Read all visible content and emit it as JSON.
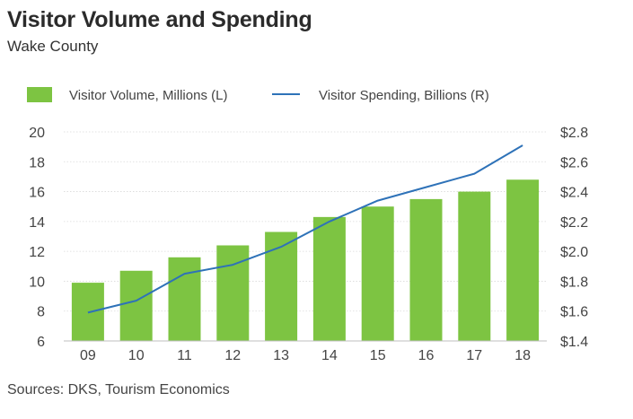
{
  "chart_data": {
    "type": "bar",
    "title": "Visitor Volume and Spending",
    "subtitle": "Wake County",
    "source": "Sources: DKS, Tourism Economics",
    "categories": [
      "09",
      "10",
      "11",
      "12",
      "13",
      "14",
      "15",
      "16",
      "17",
      "18"
    ],
    "series": [
      {
        "name": "Visitor Volume, Millions (L)",
        "type": "bar",
        "axis": "left",
        "color": "#7dc442",
        "values": [
          9.9,
          10.7,
          11.6,
          12.4,
          13.3,
          14.3,
          15.0,
          15.5,
          16.0,
          16.8
        ]
      },
      {
        "name": "Visitor Spending, Billions (R)",
        "type": "line",
        "axis": "right",
        "color": "#2e72b8",
        "values": [
          1.59,
          1.67,
          1.85,
          1.91,
          2.03,
          2.2,
          2.34,
          2.43,
          2.52,
          2.71
        ]
      }
    ],
    "y_left": {
      "range": [
        6,
        20
      ],
      "ticks": [
        "6",
        "8",
        "10",
        "12",
        "14",
        "16",
        "18",
        "20"
      ]
    },
    "y_right": {
      "range": [
        1.4,
        2.8
      ],
      "ticks": [
        "$1.4",
        "$1.6",
        "$1.8",
        "$2.0",
        "$2.2",
        "$2.4",
        "$2.6",
        "$2.8"
      ]
    },
    "grid": true,
    "legend_position": "top"
  }
}
